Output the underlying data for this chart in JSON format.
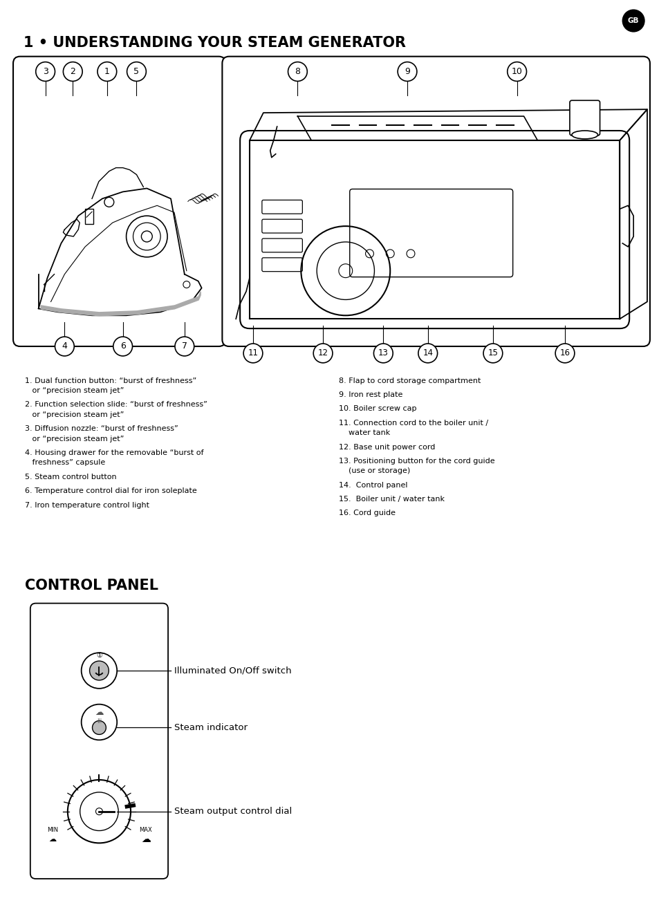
{
  "title": "1 • UNDERSTANDING YOUR STEAM GENERATOR",
  "gb_label": "GB",
  "left_items_raw": [
    [
      "1. Dual function button: “burst of freshness”",
      "   or “precision steam jet”"
    ],
    [
      "2. Function selection slide: “burst of freshness”",
      "   or “precision steam jet”"
    ],
    [
      "3. Diffusion nozzle: “burst of freshness”",
      "   or “precision steam jet”"
    ],
    [
      "4. Housing drawer for the removable “burst of",
      "   freshness” capsule"
    ],
    [
      "5. Steam control button"
    ],
    [
      "6. Temperature control dial for iron soleplate"
    ],
    [
      "7. Iron temperature control light"
    ]
  ],
  "right_items_raw": [
    [
      "8. Flap to cord storage compartment"
    ],
    [
      "9. Iron rest plate"
    ],
    [
      "10. Boiler screw cap"
    ],
    [
      "11. Connection cord to the boiler unit /",
      "    water tank"
    ],
    [
      "12. Base unit power cord"
    ],
    [
      "13. Positioning button for the cord guide",
      "    (use or storage)"
    ],
    [
      "14.  Control panel"
    ],
    [
      "15.  Boiler unit / water tank"
    ],
    [
      "16. Cord guide"
    ]
  ],
  "control_panel_title": "CONTROL PANEL",
  "control_labels": [
    "Illuminated On/Off switch",
    "Steam indicator",
    "Steam output control dial"
  ],
  "bg": "#ffffff",
  "fg": "#000000"
}
